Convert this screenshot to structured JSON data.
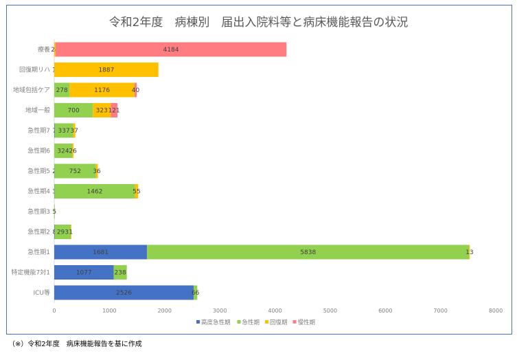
{
  "chart_data": {
    "type": "bar",
    "orientation": "horizontal",
    "stacked": true,
    "title": "令和2年度　病棟別　届出入院料等と病床機能報告の状況",
    "categories": [
      "療養",
      "回復期リハ",
      "地域包括ケア",
      "地域一般",
      "急性期7",
      "急性期6",
      "急性期5",
      "急性期4",
      "急性期3",
      "急性期2",
      "急性期1",
      "特定機能7対1",
      "ICU等"
    ],
    "series": [
      {
        "name": "高度急性期",
        "color": "#4472c4",
        "values": [
          0,
          0,
          0,
          0,
          7,
          0,
          2,
          3,
          0,
          8,
          1681,
          1077,
          2526
        ]
      },
      {
        "name": "急性期",
        "color": "#92d050",
        "values": [
          0,
          1,
          278,
          700,
          337,
          324,
          752,
          1462,
          5,
          293,
          5838,
          238,
          66
        ]
      },
      {
        "name": "回復期",
        "color": "#ffc000",
        "values": [
          24,
          1887,
          1176,
          323,
          37,
          26,
          36,
          55,
          0,
          1,
          13,
          0,
          0
        ]
      },
      {
        "name": "慢性期",
        "color": "#ff7c80",
        "values": [
          4184,
          0,
          40,
          121,
          0,
          0,
          0,
          0,
          0,
          0,
          0,
          0,
          0
        ]
      }
    ],
    "xlim": [
      0,
      8000
    ],
    "xticks": [
      0,
      1000,
      2000,
      3000,
      4000,
      5000,
      6000,
      7000,
      8000
    ],
    "grid": false,
    "legend_position": "bottom"
  },
  "footnote": "（※）令和2年度　病床機能報告を基に作成"
}
